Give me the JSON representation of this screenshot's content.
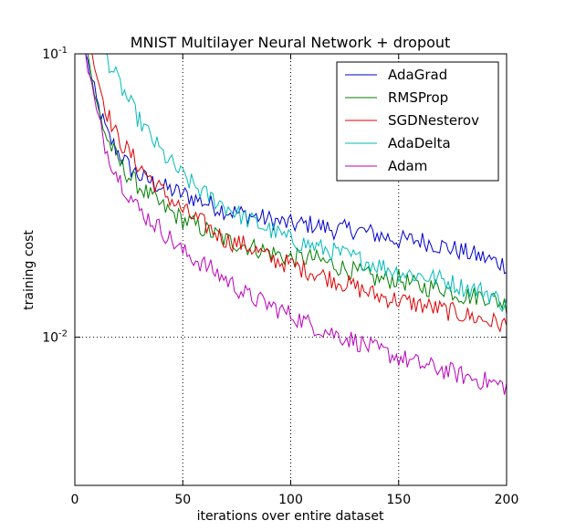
{
  "chart_data": {
    "type": "line",
    "title": "MNIST Multilayer Neural Network + dropout",
    "xlabel": "iterations over entire dataset",
    "ylabel": "training cost",
    "xlim": [
      0,
      200
    ],
    "ylim": [
      0.003,
      0.1
    ],
    "yscale": "log",
    "x_ticks": [
      0,
      50,
      100,
      150,
      200
    ],
    "x_tick_labels": [
      "0",
      "50",
      "100",
      "150",
      "200"
    ],
    "y_ticks": [
      0.01,
      0.1
    ],
    "y_tick_labels": [
      {
        "base": "10",
        "exp": "-2"
      },
      {
        "base": "10",
        "exp": "-1"
      }
    ],
    "grid": "dotted",
    "legend_position": "top-right",
    "series": [
      {
        "name": "AdaGrad",
        "color": "#0000cc",
        "points": [
          [
            5,
            0.1
          ],
          [
            10,
            0.068
          ],
          [
            15,
            0.052
          ],
          [
            20,
            0.045
          ],
          [
            25,
            0.04
          ],
          [
            30,
            0.037
          ],
          [
            40,
            0.034
          ],
          [
            50,
            0.032
          ],
          [
            60,
            0.03
          ],
          [
            70,
            0.028
          ],
          [
            80,
            0.027
          ],
          [
            90,
            0.026
          ],
          [
            100,
            0.025
          ],
          [
            110,
            0.025
          ],
          [
            120,
            0.024
          ],
          [
            130,
            0.024
          ],
          [
            140,
            0.023
          ],
          [
            150,
            0.022
          ],
          [
            160,
            0.022
          ],
          [
            170,
            0.021
          ],
          [
            180,
            0.02
          ],
          [
            190,
            0.019
          ],
          [
            200,
            0.018
          ]
        ]
      },
      {
        "name": "RMSProp",
        "color": "#008000",
        "points": [
          [
            6,
            0.1
          ],
          [
            10,
            0.066
          ],
          [
            15,
            0.05
          ],
          [
            20,
            0.042
          ],
          [
            25,
            0.037
          ],
          [
            30,
            0.034
          ],
          [
            40,
            0.029
          ],
          [
            50,
            0.026
          ],
          [
            60,
            0.024
          ],
          [
            70,
            0.022
          ],
          [
            80,
            0.021
          ],
          [
            90,
            0.02
          ],
          [
            100,
            0.019
          ],
          [
            110,
            0.019
          ],
          [
            120,
            0.018
          ],
          [
            130,
            0.017
          ],
          [
            140,
            0.016
          ],
          [
            150,
            0.016
          ],
          [
            160,
            0.015
          ],
          [
            170,
            0.015
          ],
          [
            180,
            0.014
          ],
          [
            190,
            0.014
          ],
          [
            200,
            0.013
          ]
        ]
      },
      {
        "name": "SGDNesterov",
        "color": "#e00000",
        "points": [
          [
            8,
            0.1
          ],
          [
            12,
            0.075
          ],
          [
            15,
            0.062
          ],
          [
            20,
            0.05
          ],
          [
            25,
            0.045
          ],
          [
            30,
            0.04
          ],
          [
            40,
            0.033
          ],
          [
            50,
            0.028
          ],
          [
            60,
            0.025
          ],
          [
            70,
            0.022
          ],
          [
            80,
            0.021
          ],
          [
            90,
            0.019
          ],
          [
            100,
            0.018
          ],
          [
            110,
            0.017
          ],
          [
            120,
            0.016
          ],
          [
            130,
            0.015
          ],
          [
            140,
            0.014
          ],
          [
            150,
            0.0135
          ],
          [
            160,
            0.013
          ],
          [
            170,
            0.0125
          ],
          [
            180,
            0.012
          ],
          [
            190,
            0.0115
          ],
          [
            200,
            0.011
          ]
        ]
      },
      {
        "name": "AdaDelta",
        "color": "#00bbbb",
        "points": [
          [
            14,
            0.1
          ],
          [
            20,
            0.08
          ],
          [
            25,
            0.068
          ],
          [
            30,
            0.058
          ],
          [
            40,
            0.045
          ],
          [
            50,
            0.037
          ],
          [
            60,
            0.032
          ],
          [
            70,
            0.029
          ],
          [
            80,
            0.026
          ],
          [
            90,
            0.024
          ],
          [
            100,
            0.022
          ],
          [
            110,
            0.021
          ],
          [
            120,
            0.02
          ],
          [
            130,
            0.019
          ],
          [
            140,
            0.018
          ],
          [
            150,
            0.017
          ],
          [
            160,
            0.0165
          ],
          [
            170,
            0.016
          ],
          [
            180,
            0.015
          ],
          [
            190,
            0.0145
          ],
          [
            200,
            0.013
          ]
        ]
      },
      {
        "name": "Adam",
        "color": "#bb00bb",
        "points": [
          [
            5,
            0.1
          ],
          [
            10,
            0.062
          ],
          [
            15,
            0.045
          ],
          [
            20,
            0.037
          ],
          [
            25,
            0.032
          ],
          [
            30,
            0.028
          ],
          [
            40,
            0.024
          ],
          [
            50,
            0.02
          ],
          [
            60,
            0.018
          ],
          [
            70,
            0.016
          ],
          [
            80,
            0.014
          ],
          [
            90,
            0.013
          ],
          [
            100,
            0.012
          ],
          [
            110,
            0.011
          ],
          [
            120,
            0.0103
          ],
          [
            130,
            0.0097
          ],
          [
            140,
            0.009
          ],
          [
            150,
            0.0085
          ],
          [
            160,
            0.008
          ],
          [
            170,
            0.0077
          ],
          [
            180,
            0.0073
          ],
          [
            190,
            0.007
          ],
          [
            200,
            0.0067
          ]
        ]
      }
    ]
  }
}
